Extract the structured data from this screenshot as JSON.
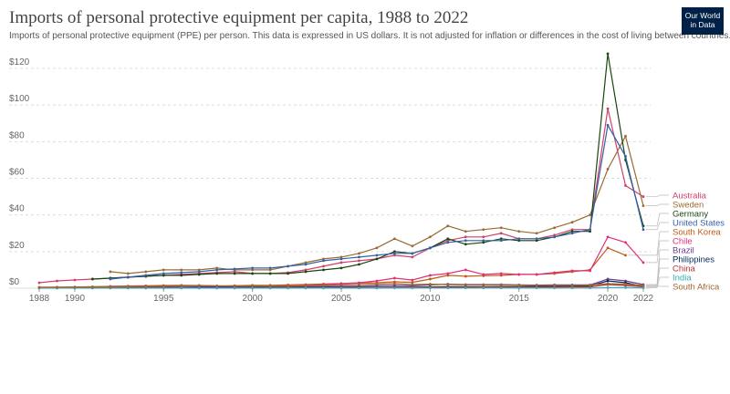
{
  "header": {
    "logo": "Our World in Data"
  },
  "chart_data": {
    "type": "line",
    "title": "Imports of personal protective equipment per capita, 1988 to 2022",
    "subtitle": "Imports of personal protective equipment (PPE) per person. This data is expressed in US dollars. It is not adjusted for inflation or differences in the cost of living between countries.",
    "x": [
      1988,
      1989,
      1990,
      1991,
      1992,
      1993,
      1994,
      1995,
      1996,
      1997,
      1998,
      1999,
      2000,
      2001,
      2002,
      2003,
      2004,
      2005,
      2006,
      2007,
      2008,
      2009,
      2010,
      2011,
      2012,
      2013,
      2014,
      2015,
      2016,
      2017,
      2018,
      2019,
      2020,
      2021,
      2022
    ],
    "xlim": [
      1988,
      2022
    ],
    "xticks": [
      1988,
      1990,
      1995,
      2000,
      2005,
      2010,
      2015,
      2020,
      2022
    ],
    "ylim": [
      0,
      120
    ],
    "yticks": [
      {
        "value": 0,
        "label": "$0"
      },
      {
        "value": 20,
        "label": "$20"
      },
      {
        "value": 40,
        "label": "$40"
      },
      {
        "value": 60,
        "label": "$60"
      },
      {
        "value": 80,
        "label": "$80"
      },
      {
        "value": 100,
        "label": "$100"
      },
      {
        "value": 120,
        "label": "$120"
      }
    ],
    "grid": true,
    "series": [
      {
        "name": "Australia",
        "color": "#d0406a",
        "values": [
          3,
          4,
          4.5,
          5,
          5.5,
          6,
          6.5,
          7,
          7.5,
          8,
          8.5,
          9,
          8,
          8,
          8.5,
          10,
          12,
          14,
          15,
          16,
          18,
          17,
          22,
          26,
          28,
          28,
          30,
          27,
          27,
          29,
          32,
          32,
          98,
          56,
          50
        ]
      },
      {
        "name": "Sweden",
        "color": "#9a6b32",
        "values": [
          null,
          null,
          null,
          null,
          9,
          8,
          9,
          10,
          10,
          10,
          11,
          10,
          10,
          10,
          12,
          14,
          16,
          17,
          19,
          22,
          27,
          23,
          28,
          34,
          31,
          32,
          33,
          31,
          30,
          33,
          36,
          40,
          65,
          83,
          45
        ]
      },
      {
        "name": "Germany",
        "color": "#18470f",
        "values": [
          null,
          null,
          null,
          5,
          5.5,
          6,
          6.5,
          7,
          7,
          7.5,
          8,
          8,
          8,
          8,
          8,
          9,
          10,
          11,
          13,
          16,
          20,
          19,
          22,
          27,
          24,
          25,
          27,
          26,
          26,
          28,
          31,
          31,
          128,
          70,
          34
        ]
      },
      {
        "name": "United States",
        "color": "#3360a9",
        "values": [
          null,
          null,
          null,
          null,
          5,
          6,
          7,
          8,
          8.5,
          9,
          10,
          10.5,
          11,
          11,
          12,
          13,
          15,
          16,
          17,
          18,
          19,
          19,
          22,
          25,
          26,
          26,
          26,
          27,
          27,
          28,
          30,
          32,
          89,
          72,
          32
        ]
      },
      {
        "name": "South Korea",
        "color": "#c05917",
        "values": [
          0.5,
          0.6,
          0.7,
          0.8,
          1,
          1.2,
          1.3,
          1.5,
          1.6,
          1.5,
          1.2,
          1.4,
          1.6,
          1.6,
          1.8,
          2,
          2.3,
          2.6,
          2.8,
          3,
          3.5,
          3.2,
          5,
          7,
          6.5,
          6.8,
          7,
          7.5,
          7.5,
          8,
          9,
          10,
          22,
          18,
          null
        ]
      },
      {
        "name": "Chile",
        "color": "#e0307a",
        "values": [
          null,
          null,
          null,
          null,
          1,
          1,
          1,
          1.2,
          1.3,
          1.4,
          1.2,
          1,
          1,
          1,
          1.2,
          1.5,
          2,
          2.5,
          3,
          4,
          5.5,
          4.5,
          7,
          8,
          10,
          7.5,
          8,
          7.5,
          7.5,
          8.5,
          9.5,
          9.5,
          28,
          25,
          14
        ]
      },
      {
        "name": "Brazil",
        "color": "#6d3e91",
        "values": [
          0.3,
          0.3,
          0.3,
          0.4,
          0.4,
          0.5,
          0.5,
          0.6,
          0.6,
          0.7,
          0.7,
          0.6,
          0.7,
          0.7,
          0.7,
          0.8,
          0.9,
          1,
          1.1,
          1.3,
          1.5,
          1.3,
          1.8,
          2.2,
          2,
          2,
          2,
          1.8,
          1.7,
          1.8,
          1.8,
          1.8,
          5,
          4,
          2
        ]
      },
      {
        "name": "Philippines",
        "color": "#00295b",
        "values": [
          0.2,
          0.2,
          0.2,
          0.2,
          0.2,
          0.3,
          0.3,
          0.3,
          0.3,
          0.3,
          0.3,
          0.3,
          0.3,
          0.3,
          0.4,
          0.4,
          0.4,
          0.5,
          0.5,
          0.5,
          0.6,
          0.6,
          0.7,
          0.8,
          0.8,
          0.8,
          0.9,
          0.9,
          1,
          1,
          1.1,
          1.2,
          4,
          3,
          1
        ]
      },
      {
        "name": "China",
        "color": "#b8332e",
        "values": [
          0.1,
          0.1,
          0.1,
          0.1,
          0.1,
          0.1,
          0.1,
          0.1,
          0.1,
          0.1,
          0.1,
          0.1,
          0.1,
          0.1,
          0.2,
          0.2,
          0.2,
          0.3,
          0.3,
          0.3,
          0.4,
          0.4,
          0.5,
          0.5,
          0.5,
          0.6,
          0.6,
          0.6,
          0.6,
          0.6,
          0.7,
          0.7,
          2,
          1.5,
          0.8
        ]
      },
      {
        "name": "India",
        "color": "#38aaba",
        "values": [
          0.05,
          0.05,
          0.05,
          0.05,
          0.05,
          0.05,
          0.05,
          0.05,
          0.05,
          0.05,
          0.05,
          0.05,
          0.05,
          0.05,
          0.05,
          0.05,
          0.05,
          0.05,
          0.05,
          0.05,
          0.1,
          0.1,
          0.1,
          0.1,
          0.1,
          0.1,
          0.1,
          0.1,
          0.1,
          0.1,
          0.1,
          0.1,
          0.3,
          0.3,
          0.2
        ]
      },
      {
        "name": "South Africa",
        "color": "#a2662f",
        "values": [
          0.5,
          0.5,
          0.6,
          0.6,
          0.7,
          0.8,
          0.9,
          1,
          1.2,
          1.5,
          1.3,
          1.2,
          1.2,
          1.1,
          1.1,
          1.3,
          1.5,
          1.8,
          2,
          2.2,
          2.5,
          2,
          2.2,
          2,
          1.8,
          1.8,
          1.8,
          1.7,
          1.6,
          1.6,
          1.6,
          1.7,
          2.5,
          2.2,
          1.5
        ]
      }
    ]
  }
}
